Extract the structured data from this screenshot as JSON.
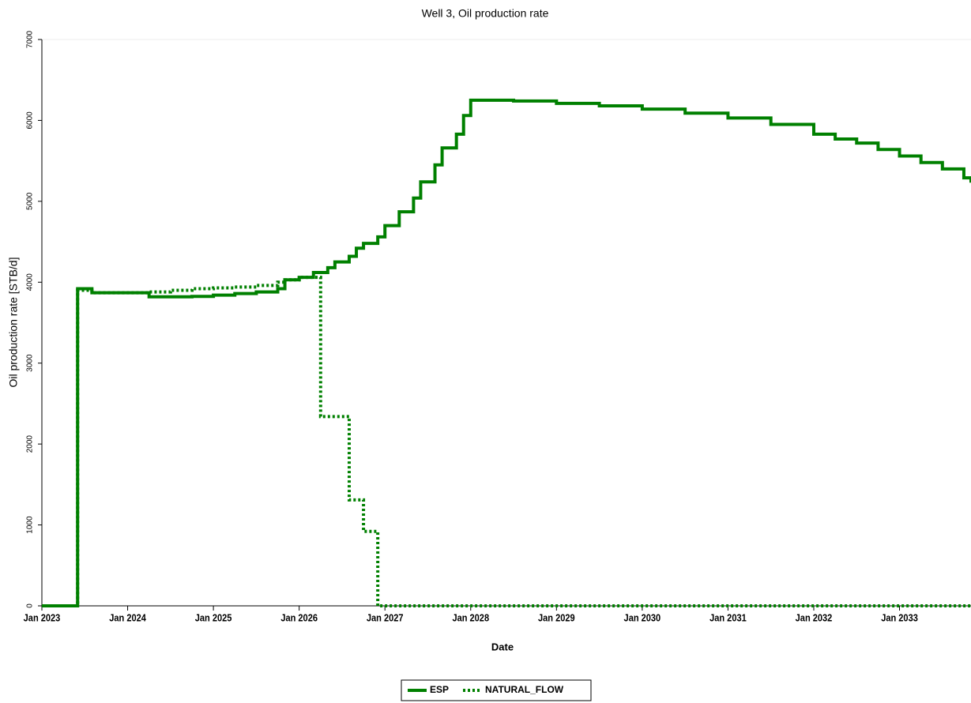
{
  "chart_data": {
    "type": "step-line",
    "title": "Well 3, Oil production rate",
    "x_label": "Date",
    "y_label": "Oil production rate [STB/d]",
    "x": [
      "2023-01",
      "2023-06",
      "2023-08",
      "2024-01",
      "2024-04",
      "2024-07",
      "2024-10",
      "2025-01",
      "2025-04",
      "2025-07",
      "2025-10",
      "2025-11",
      "2026-01",
      "2026-03",
      "2026-04",
      "2026-05",
      "2026-06",
      "2026-08",
      "2026-09",
      "2026-10",
      "2026-12",
      "2027-01",
      "2027-03",
      "2027-05",
      "2027-06",
      "2027-08",
      "2027-09",
      "2027-11",
      "2027-12",
      "2028-01",
      "2028-07",
      "2029-01",
      "2029-07",
      "2030-01",
      "2030-07",
      "2031-01",
      "2031-07",
      "2032-01",
      "2032-04",
      "2032-07",
      "2032-10",
      "2033-01",
      "2033-04",
      "2033-07",
      "2033-10",
      "2033-11"
    ],
    "series": [
      {
        "name": "ESP",
        "color": "#008000",
        "dash": "solid",
        "values": [
          0,
          3920,
          3870,
          3870,
          3820,
          3820,
          3825,
          3840,
          3860,
          3880,
          3920,
          4030,
          4060,
          4120,
          4120,
          4180,
          4250,
          4320,
          4420,
          4480,
          4560,
          4700,
          4870,
          5040,
          5240,
          5450,
          5660,
          5830,
          6060,
          6250,
          6240,
          6210,
          6180,
          6140,
          6090,
          6030,
          5950,
          5830,
          5770,
          5720,
          5640,
          5560,
          5480,
          5400,
          5290,
          5230
        ]
      },
      {
        "name": "NATURAL_FLOW",
        "color": "#008000",
        "dash": "dotted",
        "values": [
          0,
          3900,
          3870,
          3870,
          3880,
          3900,
          3920,
          3930,
          3940,
          3960,
          4000,
          4030,
          4060,
          4060,
          2340,
          2340,
          2340,
          1310,
          1310,
          920,
          0,
          0,
          0,
          0,
          0,
          0,
          0,
          0,
          0,
          0,
          0,
          0,
          0,
          0,
          0,
          0,
          0,
          0,
          0,
          0,
          0,
          0,
          0,
          0,
          0,
          0
        ]
      }
    ],
    "xlim": [
      "2023-01",
      "2033-11"
    ],
    "xticks": [
      {
        "value": "2023-01",
        "label": "Jan 2023"
      },
      {
        "value": "2024-01",
        "label": "Jan 2024"
      },
      {
        "value": "2025-01",
        "label": "Jan 2025"
      },
      {
        "value": "2026-01",
        "label": "Jan 2026"
      },
      {
        "value": "2027-01",
        "label": "Jan 2027"
      },
      {
        "value": "2028-01",
        "label": "Jan 2028"
      },
      {
        "value": "2029-01",
        "label": "Jan 2029"
      },
      {
        "value": "2030-01",
        "label": "Jan 2030"
      },
      {
        "value": "2031-01",
        "label": "Jan 2031"
      },
      {
        "value": "2032-01",
        "label": "Jan 2032"
      },
      {
        "value": "2033-01",
        "label": "Jan 2033"
      }
    ],
    "ylim": [
      0,
      7000
    ],
    "yticks": [
      0,
      1000,
      2000,
      3000,
      4000,
      5000,
      6000,
      7000
    ],
    "legend": "bottom"
  }
}
